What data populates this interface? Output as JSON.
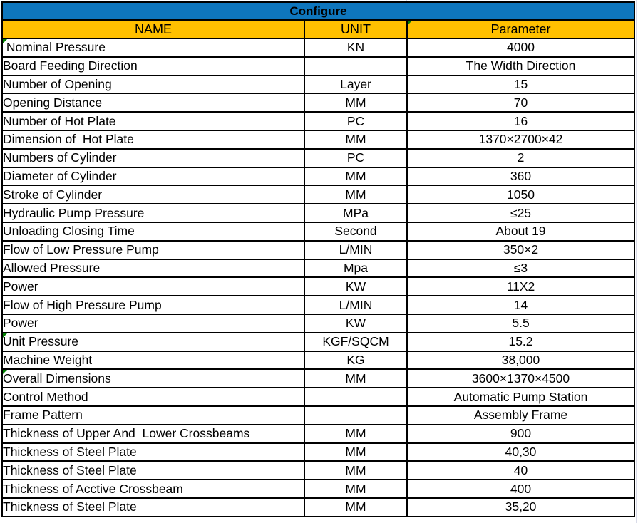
{
  "title": "Configure",
  "columns": {
    "name": "NAME",
    "unit": "UNIT",
    "parameter": "Parameter"
  },
  "rows": [
    {
      "name": " Nominal Pressure",
      "unit": "KN",
      "parameter": "4000",
      "comment_flag": true
    },
    {
      "name": "Board Feeding Direction",
      "unit": "",
      "parameter": "The Width Direction",
      "comment_flag": false
    },
    {
      "name": "Number of Opening",
      "unit": "Layer",
      "parameter": "15",
      "comment_flag": false
    },
    {
      "name": "Opening Distance",
      "unit": "MM",
      "parameter": "70",
      "comment_flag": false
    },
    {
      "name": "Number of Hot Plate",
      "unit": "PC",
      "parameter": "16",
      "comment_flag": false
    },
    {
      "name": "Dimension of  Hot Plate",
      "unit": "MM",
      "parameter": "1370×2700×42",
      "comment_flag": false
    },
    {
      "name": "Numbers of Cylinder",
      "unit": "PC",
      "parameter": "2",
      "comment_flag": false
    },
    {
      "name": "Diameter of Cylinder",
      "unit": "MM",
      "parameter": "360",
      "comment_flag": false
    },
    {
      "name": "Stroke of Cylinder",
      "unit": "MM",
      "parameter": "1050",
      "comment_flag": false
    },
    {
      "name": "Hydraulic Pump Pressure",
      "unit": "MPa",
      "parameter": "≤25",
      "comment_flag": false
    },
    {
      "name": "Unloading Closing Time",
      "unit": "Second",
      "parameter": "About 19",
      "comment_flag": false
    },
    {
      "name": "Flow of Low Pressure Pump",
      "unit": "L/MIN",
      "parameter": "350×2",
      "comment_flag": false
    },
    {
      "name": "Allowed Pressure",
      "unit": "Mpa",
      "parameter": "≤3",
      "comment_flag": false
    },
    {
      "name": "Power",
      "unit": "KW",
      "parameter": "11X2",
      "comment_flag": false
    },
    {
      "name": "Flow of High Pressure Pump",
      "unit": "L/MIN",
      "parameter": "14",
      "comment_flag": false
    },
    {
      "name": "Power",
      "unit": "KW",
      "parameter": "5.5",
      "comment_flag": false
    },
    {
      "name": "Unit Pressure",
      "unit": "KGF/SQCM",
      "parameter": "15.2",
      "comment_flag": true
    },
    {
      "name": "Machine Weight",
      "unit": "KG",
      "parameter": "38,000",
      "comment_flag": false
    },
    {
      "name": "Overall Dimensions",
      "unit": "MM",
      "parameter": "3600×1370×4500",
      "comment_flag": true
    },
    {
      "name": "Control Method",
      "unit": "",
      "parameter": "Automatic Pump Station",
      "comment_flag": false
    },
    {
      "name": "Frame Pattern",
      "unit": "",
      "parameter": "Assembly Frame",
      "comment_flag": false
    },
    {
      "name": "Thickness of Upper And  Lower Crossbeams",
      "unit": "MM",
      "parameter": "900",
      "comment_flag": false
    },
    {
      "name": "Thickness of Steel Plate",
      "unit": "MM",
      "parameter": "40,30",
      "comment_flag": false
    },
    {
      "name": "Thickness of Steel Plate",
      "unit": "MM",
      "parameter": "40",
      "comment_flag": false
    },
    {
      "name": "Thickness of Acctive Crossbeam",
      "unit": "MM",
      "parameter": "400",
      "comment_flag": false
    },
    {
      "name": "Thickness of Steel Plate",
      "unit": "MM",
      "parameter": "35,20",
      "comment_flag": false
    }
  ],
  "colors": {
    "header_blue": "#0E76BD",
    "header_gold": "#FFC000",
    "border_black": "#000000",
    "comment_green": "#008000",
    "gridline_gray": "#D9DBE8"
  }
}
